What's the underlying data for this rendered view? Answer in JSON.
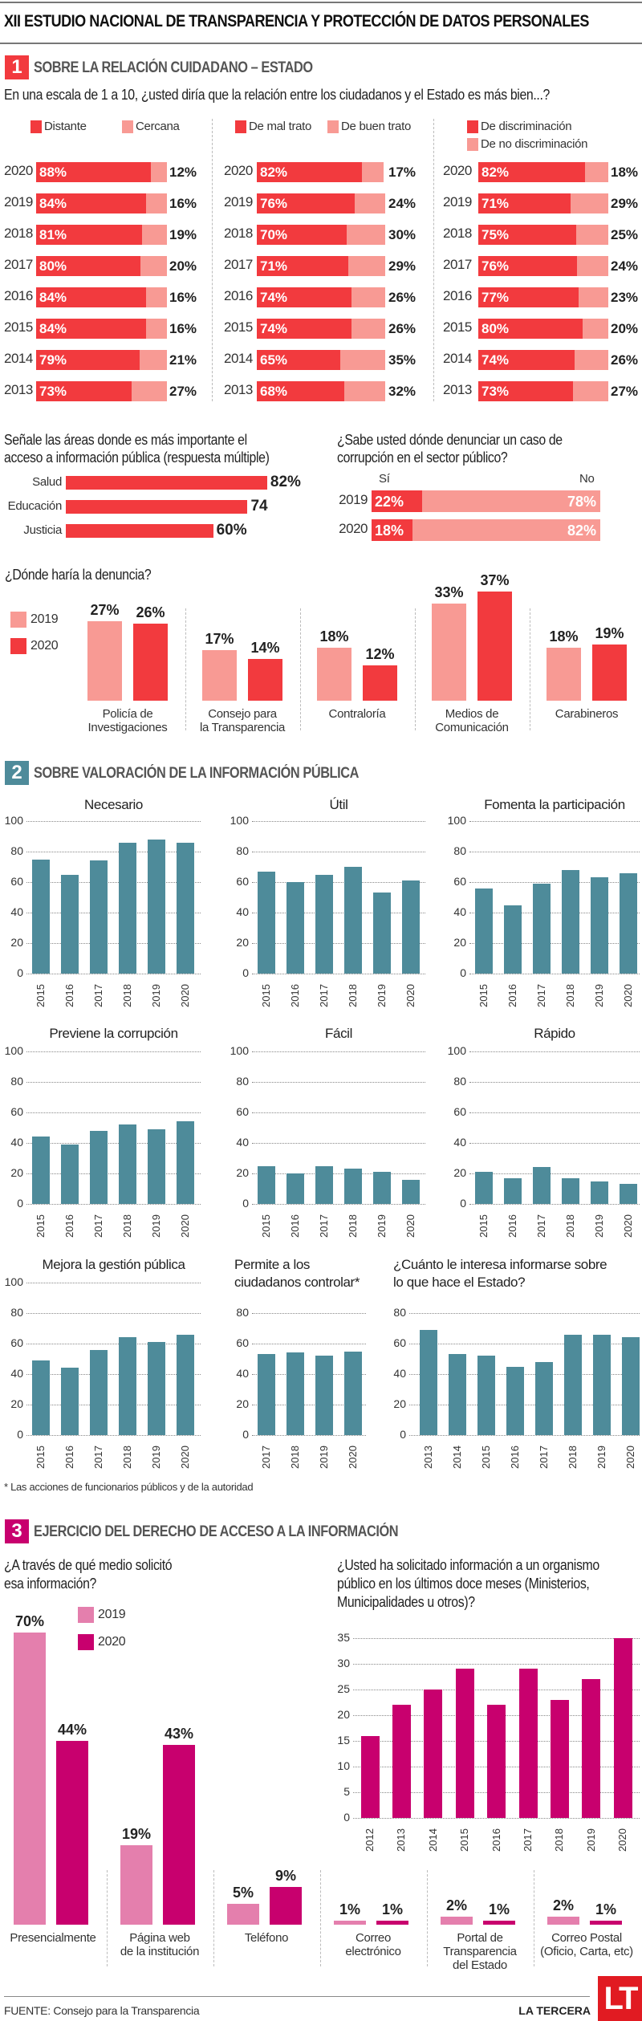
{
  "colors": {
    "red": "#f23a3e",
    "light_red": "#f89a94",
    "teal": "#4e8b9a",
    "magenta": "#c8006e",
    "light_magenta": "#e47fad",
    "logo_red": "#e11b22"
  },
  "header": {
    "title": "XII ESTUDIO NACIONAL DE TRANSPARENCIA Y PROTECCIÓN DE DATOS PERSONALES"
  },
  "section1": {
    "number": "1",
    "title": "SOBRE LA RELACIÓN CUIDADANO – ESTADO",
    "question": "En una escala de 1 a 10, ¿usted diría que la relación entre los ciudadanos y el Estado es más bien...?"
  },
  "section2": {
    "number": "2",
    "title": "SOBRE VALORACIÓN DE LA INFORMACIÓN PÚBLICA",
    "footnote": "* Las acciones de funcionarios públicos y de la autoridad"
  },
  "section3": {
    "number": "3",
    "title": "EJERCICIO DEL DERECHO DE ACCESO A LA INFORMACIÓN"
  },
  "footer": {
    "source": "FUENTE: Consejo para la Transparencia",
    "brand": "LA TERCERA",
    "logo": "LT"
  },
  "chart_data": [
    {
      "id": "relacion-1",
      "type": "bar",
      "stacked": true,
      "orientation": "horizontal",
      "legend": [
        "Distante",
        "Cercana"
      ],
      "rows": [
        {
          "year": "2020",
          "a": 88,
          "b": 12,
          "a_label": "88%",
          "b_label": "12%"
        },
        {
          "year": "2019",
          "a": 84,
          "b": 16,
          "a_label": "84%",
          "b_label": "16%"
        },
        {
          "year": "2018",
          "a": 81,
          "b": 19,
          "a_label": "81%",
          "b_label": "19%"
        },
        {
          "year": "2017",
          "a": 80,
          "b": 20,
          "a_label": "80%",
          "b_label": "20%"
        },
        {
          "year": "2016",
          "a": 84,
          "b": 16,
          "a_label": "84%",
          "b_label": "16%"
        },
        {
          "year": "2015",
          "a": 84,
          "b": 16,
          "a_label": "84%",
          "b_label": "16%"
        },
        {
          "year": "2014",
          "a": 79,
          "b": 21,
          "a_label": "79%",
          "b_label": "21%"
        },
        {
          "year": "2013",
          "a": 73,
          "b": 27,
          "a_label": "73%",
          "b_label": "27%"
        }
      ]
    },
    {
      "id": "relacion-2",
      "type": "bar",
      "stacked": true,
      "orientation": "horizontal",
      "legend": [
        "De mal trato",
        "De buen trato"
      ],
      "rows": [
        {
          "year": "2020",
          "a": 82,
          "b": 17,
          "a_label": "82%",
          "b_label": "17%"
        },
        {
          "year": "2019",
          "a": 76,
          "b": 24,
          "a_label": "76%",
          "b_label": "24%"
        },
        {
          "year": "2018",
          "a": 70,
          "b": 30,
          "a_label": "70%",
          "b_label": "30%"
        },
        {
          "year": "2017",
          "a": 71,
          "b": 29,
          "a_label": "71%",
          "b_label": "29%"
        },
        {
          "year": "2016",
          "a": 74,
          "b": 26,
          "a_label": "74%",
          "b_label": "26%"
        },
        {
          "year": "2015",
          "a": 74,
          "b": 26,
          "a_label": "74%",
          "b_label": "26%"
        },
        {
          "year": "2014",
          "a": 65,
          "b": 35,
          "a_label": "65%",
          "b_label": "35%"
        },
        {
          "year": "2013",
          "a": 68,
          "b": 32,
          "a_label": "68%",
          "b_label": "32%"
        }
      ]
    },
    {
      "id": "relacion-3",
      "type": "bar",
      "stacked": true,
      "orientation": "horizontal",
      "legend": [
        "De discriminación",
        "De no discriminación"
      ],
      "rows": [
        {
          "year": "2020",
          "a": 82,
          "b": 18,
          "a_label": "82%",
          "b_label": "18%"
        },
        {
          "year": "2019",
          "a": 71,
          "b": 29,
          "a_label": "71%",
          "b_label": "29%"
        },
        {
          "year": "2018",
          "a": 75,
          "b": 25,
          "a_label": "75%",
          "b_label": "25%"
        },
        {
          "year": "2017",
          "a": 76,
          "b": 24,
          "a_label": "76%",
          "b_label": "24%"
        },
        {
          "year": "2016",
          "a": 77,
          "b": 23,
          "a_label": "77%",
          "b_label": "23%"
        },
        {
          "year": "2015",
          "a": 80,
          "b": 20,
          "a_label": "80%",
          "b_label": "20%"
        },
        {
          "year": "2014",
          "a": 74,
          "b": 26,
          "a_label": "74%",
          "b_label": "26%"
        },
        {
          "year": "2013",
          "a": 73,
          "b": 27,
          "a_label": "73%",
          "b_label": "27%"
        }
      ]
    },
    {
      "id": "areas",
      "type": "bar",
      "orientation": "horizontal",
      "title": [
        "Señale  las áreas donde es más importante el",
        "acceso a información pública (respuesta múltiple)"
      ],
      "categories": [
        "Salud",
        "Educación",
        "Justicia"
      ],
      "values": [
        82,
        74,
        60
      ],
      "labels": [
        "82%",
        "74",
        "60%"
      ]
    },
    {
      "id": "denunciar",
      "type": "bar",
      "stacked": true,
      "orientation": "horizontal",
      "title": [
        "¿Sabe usted dónde denunciar un caso de",
        "corrupción en el sector público?"
      ],
      "legend": [
        "Sí",
        "No"
      ],
      "rows": [
        {
          "year": "2019",
          "si": 22,
          "no": 78,
          "si_label": "22%",
          "no_label": "78%"
        },
        {
          "year": "2020",
          "si": 18,
          "no": 82,
          "si_label": "18%",
          "no_label": "82%"
        }
      ]
    },
    {
      "id": "donde",
      "type": "bar",
      "title": "¿Dónde haría la denuncia?",
      "legend": [
        "2019",
        "2020"
      ],
      "groups": [
        {
          "label": [
            "Policía de",
            "Investigaciones"
          ],
          "v2019": 27,
          "v2020": 26,
          "l2019": "27%",
          "l2020": "26%"
        },
        {
          "label": [
            "Consejo para",
            "la Transparencia"
          ],
          "v2019": 17,
          "v2020": 14,
          "l2019": "17%",
          "l2020": "14%"
        },
        {
          "label": [
            "Contraloría"
          ],
          "v2019": 18,
          "v2020": 12,
          "l2019": "18%",
          "l2020": "12%"
        },
        {
          "label": [
            "Medios de",
            "Comunicación"
          ],
          "v2019": 33,
          "v2020": 37,
          "l2019": "33%",
          "l2020": "37%"
        },
        {
          "label": [
            "Carabineros"
          ],
          "v2019": 18,
          "v2020": 19,
          "l2019": "18%",
          "l2020": "19%"
        }
      ]
    },
    {
      "id": "necesario",
      "type": "bar",
      "title": [
        "Necesario"
      ],
      "x": [
        "2015",
        "2016",
        "2017",
        "2018",
        "2019",
        "2020"
      ],
      "values": [
        75,
        65,
        74,
        86,
        88,
        86
      ],
      "ylim": [
        0,
        100
      ],
      "ticks": [
        "0",
        "20",
        "40",
        "60",
        "80",
        "100"
      ],
      "grid": true
    },
    {
      "id": "util",
      "type": "bar",
      "title": [
        "Útil"
      ],
      "x": [
        "2015",
        "2016",
        "2017",
        "2018",
        "2019",
        "2020"
      ],
      "values": [
        67,
        60,
        65,
        70,
        53,
        61
      ],
      "ylim": [
        0,
        100
      ],
      "ticks": [
        "0",
        "20",
        "40",
        "60",
        "80",
        "100"
      ],
      "grid": true
    },
    {
      "id": "fomenta",
      "type": "bar",
      "title": [
        "Fomenta la participación"
      ],
      "x": [
        "2015",
        "2016",
        "2017",
        "2018",
        "2019",
        "2020"
      ],
      "values": [
        56,
        45,
        59,
        68,
        63,
        66
      ],
      "ylim": [
        0,
        100
      ],
      "ticks": [
        "0",
        "20",
        "40",
        "60",
        "80",
        "100"
      ],
      "grid": true
    },
    {
      "id": "previene",
      "type": "bar",
      "title": [
        "Previene la corrupción"
      ],
      "x": [
        "2015",
        "2016",
        "2017",
        "2018",
        "2019",
        "2020"
      ],
      "values": [
        44,
        39,
        48,
        52,
        49,
        54
      ],
      "ylim": [
        0,
        100
      ],
      "ticks": [
        "0",
        "20",
        "40",
        "60",
        "80",
        "100"
      ],
      "grid": true
    },
    {
      "id": "facil",
      "type": "bar",
      "title": [
        "Fácil"
      ],
      "x": [
        "2015",
        "2016",
        "2017",
        "2018",
        "2019",
        "2020"
      ],
      "values": [
        25,
        20,
        25,
        23,
        21,
        16
      ],
      "ylim": [
        0,
        100
      ],
      "ticks": [
        "0",
        "20",
        "40",
        "60",
        "80",
        "100"
      ],
      "grid": true
    },
    {
      "id": "rapido",
      "type": "bar",
      "title": [
        "Rápido"
      ],
      "x": [
        "2015",
        "2016",
        "2017",
        "2018",
        "2019",
        "2020"
      ],
      "values": [
        21,
        17,
        24,
        17,
        15,
        13
      ],
      "ylim": [
        0,
        100
      ],
      "ticks": [
        "0",
        "20",
        "40",
        "60",
        "80",
        "100"
      ],
      "grid": true
    },
    {
      "id": "mejora",
      "type": "bar",
      "title": [
        "Mejora la gestión pública"
      ],
      "x": [
        "2015",
        "2016",
        "2017",
        "2018",
        "2019",
        "2020"
      ],
      "values": [
        49,
        44,
        56,
        64,
        61,
        66
      ],
      "ylim": [
        0,
        100
      ],
      "ticks": [
        "0",
        "20",
        "40",
        "60",
        "80",
        "100"
      ],
      "grid": true
    },
    {
      "id": "permite",
      "type": "bar",
      "title": [
        "Permite a los",
        "ciudadanos controlar*"
      ],
      "x": [
        "2017",
        "2018",
        "2019",
        "2020"
      ],
      "values": [
        53,
        54,
        52,
        55
      ],
      "ylim": [
        0,
        100
      ],
      "ticks": [
        "0",
        "20",
        "40",
        "60",
        "80"
      ],
      "grid": true
    },
    {
      "id": "interesa",
      "type": "bar",
      "title": [
        "¿Cuánto le interesa informarse sobre",
        "lo que hace el Estado?"
      ],
      "x": [
        "2013",
        "2014",
        "2015",
        "2016",
        "2017",
        "2018",
        "2019",
        "2020"
      ],
      "values": [
        69,
        53,
        52,
        45,
        48,
        66,
        66,
        64
      ],
      "ylim": [
        0,
        100
      ],
      "ticks": [
        "0",
        "20",
        "40",
        "60",
        "80"
      ],
      "grid": true
    },
    {
      "id": "medio",
      "type": "bar",
      "title": [
        "¿A través de qué medio solicitó",
        "esa información?"
      ],
      "legend": [
        "2019",
        "2020"
      ],
      "groups": [
        {
          "label": [
            "Presencialmente"
          ],
          "v2019": 70,
          "v2020": 44,
          "l2019": "70%",
          "l2020": "44%"
        },
        {
          "label": [
            "Página web",
            "de la institución"
          ],
          "v2019": 19,
          "v2020": 43,
          "l2019": "19%",
          "l2020": "43%"
        },
        {
          "label": [
            "Teléfono"
          ],
          "v2019": 5,
          "v2020": 9,
          "l2019": "5%",
          "l2020": "9%"
        },
        {
          "label": [
            "Correo",
            "electrónico"
          ],
          "v2019": 1,
          "v2020": 1,
          "l2019": "1%",
          "l2020": "1%"
        },
        {
          "label": [
            "Portal de",
            "Transparencia",
            "del Estado"
          ],
          "v2019": 2,
          "v2020": 1,
          "l2019": "2%",
          "l2020": "1%"
        },
        {
          "label": [
            "Correo Postal",
            "(Oficio, Carta, etc)"
          ],
          "v2019": 2,
          "v2020": 1,
          "l2019": "2%",
          "l2020": "1%"
        }
      ]
    },
    {
      "id": "solicitado",
      "type": "bar",
      "title": [
        "¿Usted ha solicitado información a un organismo",
        "público en los últimos doce meses (Ministerios,",
        "Municipalidades u otros)?"
      ],
      "x": [
        "2012",
        "2013",
        "2014",
        "2015",
        "2016",
        "2017",
        "2018",
        "2019",
        "2020"
      ],
      "values": [
        16,
        22,
        25,
        29,
        22,
        29,
        23,
        27,
        35
      ],
      "ylim": [
        0,
        35
      ],
      "ticks": [
        "0",
        "5",
        "10",
        "15",
        "20",
        "25",
        "30",
        "35"
      ],
      "grid": true
    }
  ]
}
